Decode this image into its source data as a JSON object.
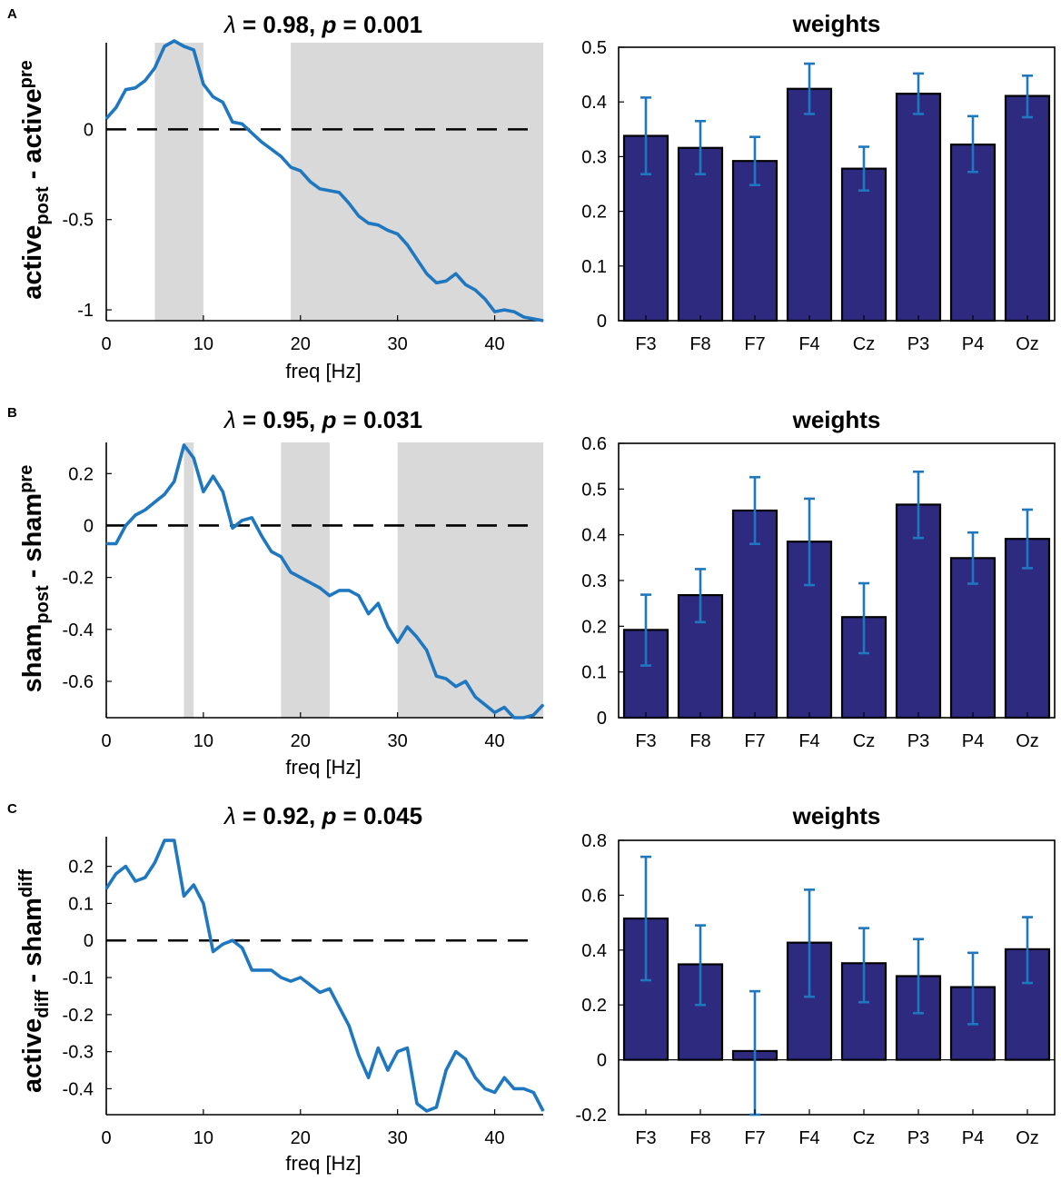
{
  "figure": {
    "panels": [
      {
        "label": "A",
        "name": "active"
      },
      {
        "label": "B",
        "name": "sham"
      },
      {
        "label": "C",
        "name": "diff"
      }
    ]
  },
  "colors": {
    "line": "#1f77c0",
    "bar_fill": "#2e2a7f",
    "error_bar": "#1f77c0",
    "shade": "#d9d9d9"
  },
  "chart_data": [
    {
      "type": "line",
      "panel": "A",
      "title_symbol": "λ",
      "title_mid": " = 0.98, ",
      "title_p": "p",
      "title_end": " = 0.001",
      "xlabel": "freq [Hz]",
      "ylabel": {
        "a": "active",
        "a_sub": "post",
        "mid": " - ",
        "b": "active",
        "b_sub": "pre"
      },
      "xlim": [
        0,
        45
      ],
      "ylim": [
        -1.06,
        0.48
      ],
      "xticks": [
        0,
        10,
        20,
        30,
        40
      ],
      "yticks": [
        -1,
        -0.5,
        0
      ],
      "ytick_labels": [
        "-1",
        "-0.5",
        "0"
      ],
      "zero_line": 0,
      "shaded_ranges": [
        [
          5,
          10
        ],
        [
          19,
          45
        ]
      ],
      "x": [
        0,
        1,
        2,
        3,
        4,
        5,
        6,
        7,
        8,
        9,
        10,
        11,
        12,
        13,
        14,
        15,
        16,
        17,
        18,
        19,
        20,
        21,
        22,
        23,
        24,
        25,
        26,
        27,
        28,
        29,
        30,
        31,
        32,
        33,
        34,
        35,
        36,
        37,
        38,
        39,
        40,
        41,
        42,
        43,
        44,
        45
      ],
      "y": [
        0.06,
        0.12,
        0.22,
        0.23,
        0.27,
        0.34,
        0.46,
        0.49,
        0.46,
        0.44,
        0.25,
        0.18,
        0.15,
        0.04,
        0.03,
        -0.02,
        -0.07,
        -0.11,
        -0.15,
        -0.21,
        -0.23,
        -0.29,
        -0.33,
        -0.34,
        -0.35,
        -0.41,
        -0.48,
        -0.52,
        -0.53,
        -0.56,
        -0.58,
        -0.64,
        -0.72,
        -0.8,
        -0.85,
        -0.84,
        -0.8,
        -0.86,
        -0.89,
        -0.94,
        -1.01,
        -1.0,
        -1.01,
        -1.04,
        -1.05,
        -1.06
      ]
    },
    {
      "type": "bar",
      "panel": "A",
      "title": "weights",
      "categories": [
        "F3",
        "F8",
        "F7",
        "F4",
        "Cz",
        "P3",
        "P4",
        "Oz"
      ],
      "values": [
        0.338,
        0.316,
        0.292,
        0.424,
        0.278,
        0.415,
        0.322,
        0.411
      ],
      "err_low": [
        0.268,
        0.268,
        0.248,
        0.378,
        0.238,
        0.378,
        0.272,
        0.372
      ],
      "err_high": [
        0.408,
        0.365,
        0.336,
        0.47,
        0.318,
        0.452,
        0.374,
        0.448
      ],
      "ylim": [
        0,
        0.5
      ],
      "yticks": [
        0,
        0.1,
        0.2,
        0.3,
        0.4,
        0.5
      ],
      "ytick_labels": [
        "0",
        "0.1",
        "0.2",
        "0.3",
        "0.4",
        "0.5"
      ]
    },
    {
      "type": "line",
      "panel": "B",
      "title_symbol": "λ",
      "title_mid": " = 0.95, ",
      "title_p": "p",
      "title_end": " = 0.031",
      "xlabel": "freq [Hz]",
      "ylabel": {
        "a": "sham",
        "a_sub": "post",
        "mid": " - ",
        "b": "sham",
        "b_sub": "pre"
      },
      "xlim": [
        0,
        45
      ],
      "ylim": [
        -0.74,
        0.32
      ],
      "xticks": [
        0,
        10,
        20,
        30,
        40
      ],
      "yticks": [
        -0.6,
        -0.4,
        -0.2,
        0,
        0.2
      ],
      "ytick_labels": [
        "-0.6",
        "-0.4",
        "-0.2",
        "0",
        "0.2"
      ],
      "zero_line": 0,
      "shaded_ranges": [
        [
          8,
          9
        ],
        [
          18,
          23
        ],
        [
          30,
          45
        ]
      ],
      "x": [
        0,
        1,
        2,
        3,
        4,
        5,
        6,
        7,
        8,
        9,
        10,
        11,
        12,
        13,
        14,
        15,
        16,
        17,
        18,
        19,
        20,
        21,
        22,
        23,
        24,
        25,
        26,
        27,
        28,
        29,
        30,
        31,
        32,
        33,
        34,
        35,
        36,
        37,
        38,
        39,
        40,
        41,
        42,
        43,
        44,
        45
      ],
      "y": [
        -0.07,
        -0.07,
        0.0,
        0.04,
        0.06,
        0.09,
        0.12,
        0.17,
        0.31,
        0.26,
        0.13,
        0.19,
        0.13,
        -0.01,
        0.02,
        0.03,
        -0.04,
        -0.1,
        -0.12,
        -0.18,
        -0.2,
        -0.22,
        -0.24,
        -0.27,
        -0.25,
        -0.25,
        -0.27,
        -0.34,
        -0.3,
        -0.39,
        -0.45,
        -0.39,
        -0.43,
        -0.48,
        -0.58,
        -0.59,
        -0.62,
        -0.6,
        -0.66,
        -0.69,
        -0.72,
        -0.7,
        -0.74,
        -0.74,
        -0.73,
        -0.69
      ]
    },
    {
      "type": "bar",
      "panel": "B",
      "title": "weights",
      "categories": [
        "F3",
        "F8",
        "F7",
        "F4",
        "Cz",
        "P3",
        "P4",
        "Oz"
      ],
      "values": [
        0.192,
        0.268,
        0.453,
        0.385,
        0.22,
        0.466,
        0.349,
        0.391
      ],
      "err_low": [
        0.114,
        0.209,
        0.38,
        0.29,
        0.141,
        0.393,
        0.293,
        0.327
      ],
      "err_high": [
        0.269,
        0.325,
        0.526,
        0.479,
        0.294,
        0.538,
        0.405,
        0.455
      ],
      "ylim": [
        0,
        0.6
      ],
      "yticks": [
        0,
        0.1,
        0.2,
        0.3,
        0.4,
        0.5,
        0.6
      ],
      "ytick_labels": [
        "0",
        "0.1",
        "0.2",
        "0.3",
        "0.4",
        "0.5",
        "0.6"
      ]
    },
    {
      "type": "line",
      "panel": "C",
      "title_symbol": "λ",
      "title_mid": " = 0.92, ",
      "title_p": "p",
      "title_end": " = 0.045",
      "xlabel": "freq [Hz]",
      "ylabel": {
        "a": "active",
        "a_sub": "diff",
        "mid": " - ",
        "b": "sham",
        "b_sub": "diff"
      },
      "xlim": [
        0,
        45
      ],
      "ylim": [
        -0.47,
        0.28
      ],
      "xticks": [
        0,
        10,
        20,
        30,
        40
      ],
      "yticks": [
        -0.4,
        -0.3,
        -0.2,
        -0.1,
        0,
        0.1,
        0.2
      ],
      "ytick_labels": [
        "-0.4",
        "-0.3",
        "-0.2",
        "-0.1",
        "0",
        "0.1",
        "0.2"
      ],
      "zero_line": 0,
      "shaded_ranges": [],
      "x": [
        0,
        1,
        2,
        3,
        4,
        5,
        6,
        7,
        8,
        9,
        10,
        11,
        12,
        13,
        14,
        15,
        16,
        17,
        18,
        19,
        20,
        21,
        22,
        23,
        24,
        25,
        26,
        27,
        28,
        29,
        30,
        31,
        32,
        33,
        34,
        35,
        36,
        37,
        38,
        39,
        40,
        41,
        42,
        43,
        44,
        45
      ],
      "y": [
        0.14,
        0.18,
        0.2,
        0.16,
        0.17,
        0.21,
        0.27,
        0.27,
        0.12,
        0.15,
        0.1,
        -0.03,
        -0.01,
        0.0,
        -0.02,
        -0.08,
        -0.08,
        -0.08,
        -0.1,
        -0.11,
        -0.1,
        -0.12,
        -0.14,
        -0.13,
        -0.18,
        -0.23,
        -0.31,
        -0.37,
        -0.29,
        -0.35,
        -0.3,
        -0.29,
        -0.44,
        -0.46,
        -0.45,
        -0.35,
        -0.3,
        -0.32,
        -0.37,
        -0.4,
        -0.41,
        -0.37,
        -0.4,
        -0.4,
        -0.41,
        -0.46
      ]
    },
    {
      "type": "bar",
      "panel": "C",
      "title": "weights",
      "categories": [
        "F3",
        "F8",
        "F7",
        "F4",
        "Cz",
        "P3",
        "P4",
        "Oz"
      ],
      "values": [
        0.515,
        0.348,
        0.032,
        0.427,
        0.352,
        0.305,
        0.265,
        0.403
      ],
      "err_low": [
        0.29,
        0.2,
        -0.2,
        0.23,
        0.21,
        0.17,
        0.13,
        0.28
      ],
      "err_high": [
        0.74,
        0.49,
        0.25,
        0.62,
        0.48,
        0.44,
        0.39,
        0.52
      ],
      "ylim": [
        -0.2,
        0.8
      ],
      "yticks": [
        -0.2,
        0,
        0.2,
        0.4,
        0.6,
        0.8
      ],
      "ytick_labels": [
        "-0.2",
        "0",
        "0.2",
        "0.4",
        "0.6",
        "0.8"
      ]
    }
  ]
}
